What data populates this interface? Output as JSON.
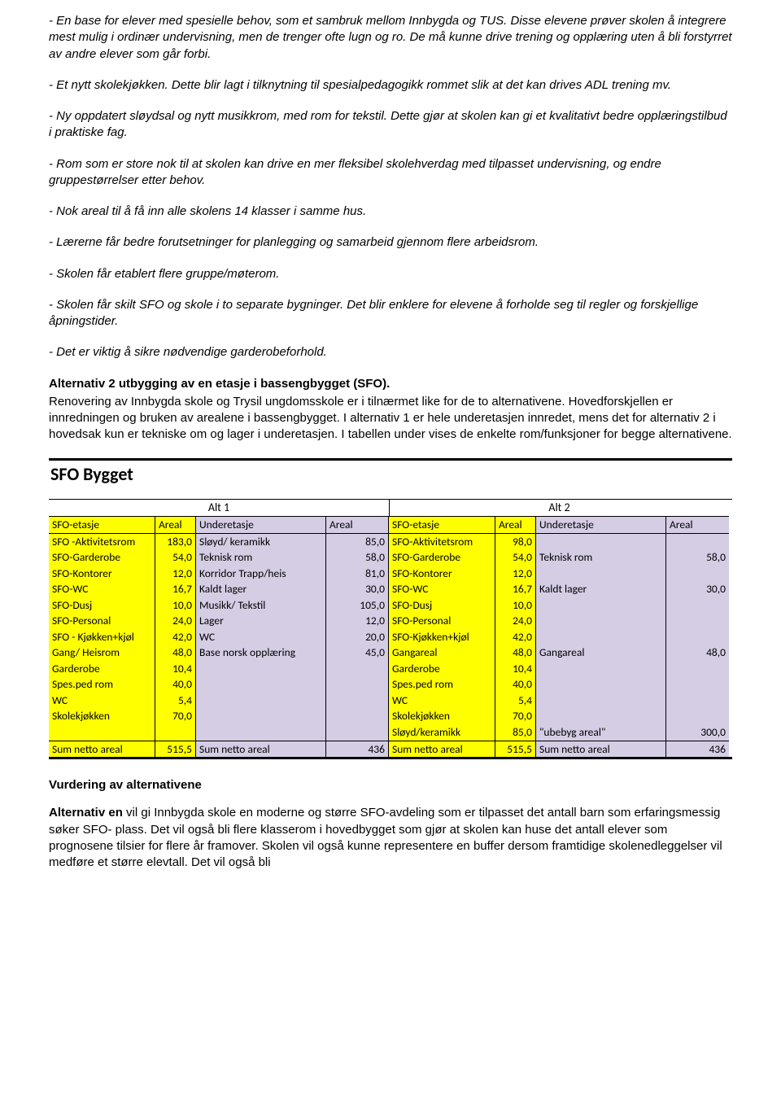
{
  "paragraphs": {
    "p1": "- En base for elever med spesielle behov, som et sambruk mellom Innbygda og TUS. Disse elevene prøver skolen å integrere mest mulig i ordinær undervisning, men de trenger ofte lugn og ro. De må kunne drive trening og opplæring uten å bli forstyrret av andre elever som går forbi.",
    "p2": "- Et nytt skolekjøkken. Dette blir lagt i tilknytning til spesialpedagogikk rommet slik at det kan drives ADL trening mv.",
    "p3": "- Ny oppdatert sløydsal og nytt musikkrom, med rom for tekstil. Dette gjør at skolen kan gi et kvalitativt bedre opplæringstilbud i praktiske fag.",
    "p4": "- Rom som er store nok til at skolen kan drive en mer fleksibel skolehverdag med tilpasset undervisning, og endre gruppestørrelser etter behov.",
    "p5": "- Nok areal til å få inn alle skolens 14 klasser i samme hus.",
    "p6": "- Lærerne får bedre forutsetninger for planlegging og samarbeid gjennom flere arbeidsrom.",
    "p7": "- Skolen får etablert flere gruppe/møterom.",
    "p8": "- Skolen får skilt SFO og skole i to separate bygninger. Det blir enklere for elevene å forholde seg til regler og forskjellige åpningstider.",
    "p9": "- Det er viktig å sikre nødvendige garderobeforhold.",
    "alt2_heading": "Alternativ 2 utbygging av en etasje i bassengbygget (SFO).",
    "alt2_body": "Renovering av Innbygda skole og Trysil ungdomsskole er i tilnærmet like for de to alternativene. Hovedforskjellen er innredningen og bruken av arealene i bassengbygget. I alternativ 1 er hele underetasjen innredet, mens det for alternativ 2 i hovedsak kun er tekniske om og lager i underetasjen. I tabellen under vises de enkelte rom/funksjoner  for begge alternativene.",
    "vurdering_heading": "Vurdering av alternativene",
    "vurdering_body": "Alternativ en vil gi Innbygda skole en moderne og større SFO-avdeling som er tilpasset det antall barn som erfaringsmessig søker SFO- plass. Det vil også bli flere klasserom i hovedbygget som gjør at skolen kan huse det antall elever som prognosene tilsier for flere år framover. Skolen vil også kunne representere en buffer dersom framtidige skolenedleggelser vil medføre et større elevtall. Det vil også bli",
    "alt_en_lead": "Alternativ en"
  },
  "table": {
    "title": "SFO Bygget",
    "alt1_label": "Alt 1",
    "alt2_label": "Alt 2",
    "col_sfo_etasje": "SFO-etasje",
    "col_areal": "Areal",
    "col_underetasje": "Underetasje",
    "colors": {
      "yellow": "#ffff00",
      "lavender": "#d4cde4",
      "header_lav": "#d4cde4"
    },
    "rows": [
      {
        "a1s": "SFO -Aktivitetsrom",
        "a1sv": "183,0",
        "a1u": "Sløyd/ keramikk",
        "a1uv": "85,0",
        "a2s": "SFO-Aktivitetsrom",
        "a2sv": "98,0",
        "a2u": "",
        "a2uv": ""
      },
      {
        "a1s": "SFO-Garderobe",
        "a1sv": "54,0",
        "a1u": "Teknisk rom",
        "a1uv": "58,0",
        "a2s": "SFO-Garderobe",
        "a2sv": "54,0",
        "a2u": "Teknisk rom",
        "a2uv": "58,0"
      },
      {
        "a1s": "SFO-Kontorer",
        "a1sv": "12,0",
        "a1u": "Korridor Trapp/heis",
        "a1uv": "81,0",
        "a2s": "SFO-Kontorer",
        "a2sv": "12,0",
        "a2u": "",
        "a2uv": ""
      },
      {
        "a1s": "SFO-WC",
        "a1sv": "16,7",
        "a1u": "Kaldt lager",
        "a1uv": "30,0",
        "a2s": "SFO-WC",
        "a2sv": "16,7",
        "a2u": "Kaldt lager",
        "a2uv": "30,0"
      },
      {
        "a1s": "SFO-Dusj",
        "a1sv": "10,0",
        "a1u": "Musikk/ Tekstil",
        "a1uv": "105,0",
        "a2s": "SFO-Dusj",
        "a2sv": "10,0",
        "a2u": "",
        "a2uv": ""
      },
      {
        "a1s": "SFO-Personal",
        "a1sv": "24,0",
        "a1u": "Lager",
        "a1uv": "12,0",
        "a2s": "SFO-Personal",
        "a2sv": "24,0",
        "a2u": "",
        "a2uv": ""
      },
      {
        "a1s": "SFO - Kjøkken+kjøl",
        "a1sv": "42,0",
        "a1u": "WC",
        "a1uv": "20,0",
        "a2s": "SFO-Kjøkken+kjøl",
        "a2sv": "42,0",
        "a2u": "",
        "a2uv": ""
      },
      {
        "a1s": "Gang/ Heisrom",
        "a1sv": "48,0",
        "a1u": "Base norsk opplæring",
        "a1uv": "45,0",
        "a2s": "Gangareal",
        "a2sv": "48,0",
        "a2u": "Gangareal",
        "a2uv": "48,0"
      },
      {
        "a1s": "Garderobe",
        "a1sv": "10,4",
        "a1u": "",
        "a1uv": "",
        "a2s": "Garderobe",
        "a2sv": "10,4",
        "a2u": "",
        "a2uv": ""
      },
      {
        "a1s": "Spes.ped rom",
        "a1sv": "40,0",
        "a1u": "",
        "a1uv": "",
        "a2s": "Spes.ped rom",
        "a2sv": "40,0",
        "a2u": "",
        "a2uv": ""
      },
      {
        "a1s": "WC",
        "a1sv": "5,4",
        "a1u": "",
        "a1uv": "",
        "a2s": "WC",
        "a2sv": "5,4",
        "a2u": "",
        "a2uv": ""
      },
      {
        "a1s": "Skolekjøkken",
        "a1sv": "70,0",
        "a1u": "",
        "a1uv": "",
        "a2s": "Skolekjøkken",
        "a2sv": "70,0",
        "a2u": "",
        "a2uv": ""
      },
      {
        "a1s": "",
        "a1sv": "",
        "a1u": "",
        "a1uv": "",
        "a2s": "Sløyd/keramikk",
        "a2sv": "85,0",
        "a2u": "\"ubebyg areal\"",
        "a2uv": "300,0"
      }
    ],
    "sum": {
      "label": "Sum netto areal",
      "a1sv": "515,5",
      "a1uv": "436",
      "a2sv": "515,5",
      "a2uv": "436"
    }
  }
}
